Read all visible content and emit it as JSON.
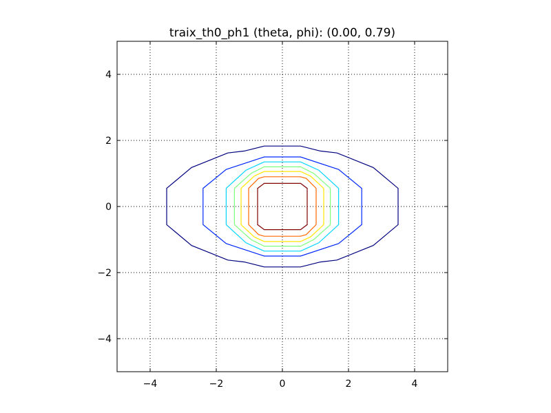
{
  "chart_data": {
    "type": "contour",
    "title": "traix_th0_ph1 (theta, phi): (0.00, 0.79)",
    "xlim": [
      -5,
      5
    ],
    "ylim": [
      -5,
      5
    ],
    "grid": true,
    "x_ticks": [
      -4,
      -2,
      0,
      2,
      4
    ],
    "y_ticks": [
      -4,
      -2,
      0,
      2,
      4
    ],
    "x_tick_labels": [
      "−4",
      "−2",
      "0",
      "2",
      "4"
    ],
    "y_tick_labels": [
      "−4",
      "−2",
      "0",
      "2",
      "4"
    ],
    "levels": [
      {
        "color": "#00007f",
        "points": [
          [
            -3.5,
            0.55
          ],
          [
            -2.75,
            1.18
          ],
          [
            -1.65,
            1.62
          ],
          [
            -1.15,
            1.68
          ],
          [
            -0.55,
            1.83
          ],
          [
            0.55,
            1.83
          ],
          [
            1.15,
            1.68
          ],
          [
            1.65,
            1.62
          ],
          [
            2.75,
            1.18
          ],
          [
            3.5,
            0.55
          ],
          [
            3.5,
            -0.55
          ],
          [
            2.75,
            -1.18
          ],
          [
            1.65,
            -1.62
          ],
          [
            1.15,
            -1.68
          ],
          [
            0.55,
            -1.83
          ],
          [
            -0.55,
            -1.83
          ],
          [
            -1.15,
            -1.68
          ],
          [
            -1.65,
            -1.62
          ],
          [
            -2.75,
            -1.18
          ],
          [
            -3.5,
            -0.55
          ]
        ]
      },
      {
        "color": "#0028ff",
        "points": [
          [
            -2.4,
            0.55
          ],
          [
            -1.7,
            1.12
          ],
          [
            -0.55,
            1.5
          ],
          [
            0.55,
            1.5
          ],
          [
            1.7,
            1.12
          ],
          [
            2.4,
            0.55
          ],
          [
            2.4,
            -0.55
          ],
          [
            1.7,
            -1.12
          ],
          [
            0.55,
            -1.5
          ],
          [
            -0.55,
            -1.5
          ],
          [
            -1.7,
            -1.12
          ],
          [
            -2.4,
            -0.55
          ]
        ]
      },
      {
        "color": "#00d4ff",
        "points": [
          [
            -1.7,
            0.55
          ],
          [
            -1.1,
            1.1
          ],
          [
            -0.55,
            1.35
          ],
          [
            0.55,
            1.35
          ],
          [
            1.1,
            1.1
          ],
          [
            1.7,
            0.55
          ],
          [
            1.7,
            -0.55
          ],
          [
            1.1,
            -1.1
          ],
          [
            0.55,
            -1.35
          ],
          [
            -0.55,
            -1.35
          ],
          [
            -1.1,
            -1.1
          ],
          [
            -1.7,
            -0.55
          ]
        ]
      },
      {
        "color": "#7cff79",
        "points": [
          [
            -1.45,
            0.55
          ],
          [
            -0.95,
            1.0
          ],
          [
            -0.55,
            1.2
          ],
          [
            0.55,
            1.2
          ],
          [
            0.95,
            1.0
          ],
          [
            1.45,
            0.55
          ],
          [
            1.45,
            -0.55
          ],
          [
            0.95,
            -1.0
          ],
          [
            0.55,
            -1.2
          ],
          [
            -0.55,
            -1.2
          ],
          [
            -0.95,
            -1.0
          ],
          [
            -1.45,
            -0.55
          ]
        ]
      },
      {
        "color": "#ffe600",
        "points": [
          [
            -1.25,
            0.55
          ],
          [
            -0.85,
            0.92
          ],
          [
            -0.55,
            1.06
          ],
          [
            0.55,
            1.06
          ],
          [
            0.85,
            0.92
          ],
          [
            1.25,
            0.55
          ],
          [
            1.25,
            -0.55
          ],
          [
            0.85,
            -0.92
          ],
          [
            0.55,
            -1.06
          ],
          [
            -0.55,
            -1.06
          ],
          [
            -0.85,
            -0.92
          ],
          [
            -1.25,
            -0.55
          ]
        ]
      },
      {
        "color": "#ff6800",
        "points": [
          [
            -1.02,
            0.55
          ],
          [
            -0.72,
            0.85
          ],
          [
            -0.55,
            0.9
          ],
          [
            0.55,
            0.9
          ],
          [
            0.72,
            0.85
          ],
          [
            1.02,
            0.55
          ],
          [
            1.02,
            -0.55
          ],
          [
            0.72,
            -0.85
          ],
          [
            0.55,
            -0.9
          ],
          [
            -0.55,
            -0.9
          ],
          [
            -0.72,
            -0.85
          ],
          [
            -1.02,
            -0.55
          ]
        ]
      },
      {
        "color": "#7f0000",
        "points": [
          [
            -0.75,
            0.55
          ],
          [
            -0.55,
            0.7
          ],
          [
            0.55,
            0.7
          ],
          [
            0.75,
            0.55
          ],
          [
            0.75,
            -0.55
          ],
          [
            0.55,
            -0.7
          ],
          [
            -0.55,
            -0.7
          ],
          [
            -0.75,
            -0.55
          ]
        ]
      }
    ]
  }
}
